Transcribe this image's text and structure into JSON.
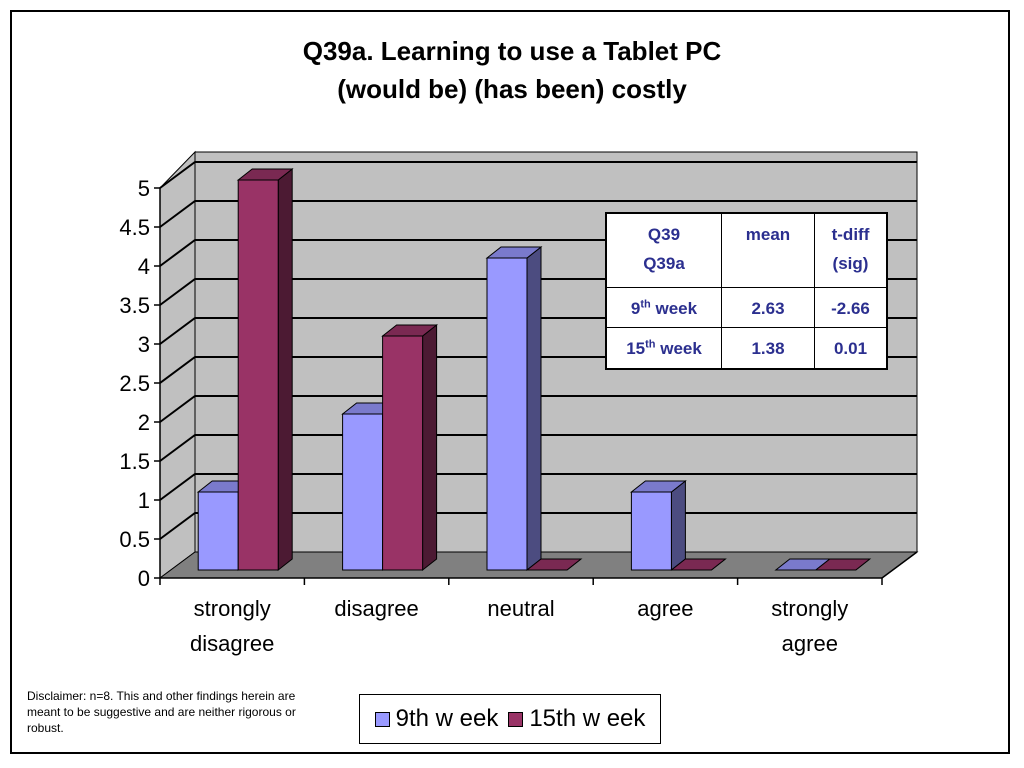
{
  "chart_data": {
    "type": "bar",
    "title_lines": [
      "Q39a. Learning to use a Tablet PC",
      "(would be) (has been) costly"
    ],
    "categories": [
      [
        "strongly",
        "disagree"
      ],
      [
        "disagree"
      ],
      [
        "neutral"
      ],
      [
        "agree"
      ],
      [
        "strongly",
        "agree"
      ]
    ],
    "series": [
      {
        "name": "9th w eek",
        "values": [
          1,
          2,
          4,
          1,
          0
        ]
      },
      {
        "name": "15th w eek",
        "values": [
          5,
          3,
          0,
          0,
          0
        ]
      }
    ],
    "y_ticks": [
      "0",
      "0.5",
      "1",
      "1.5",
      "2",
      "2.5",
      "3",
      "3.5",
      "4",
      "4.5",
      "5"
    ],
    "ylim": [
      0,
      5
    ],
    "grid": true,
    "legend_position": "bottom",
    "colors": {
      "series_front": [
        "#9999ff",
        "#993366"
      ],
      "series_side": [
        "#4c4c80",
        "#4c1a33"
      ],
      "series_top": [
        "#7a7acc",
        "#7a2952"
      ],
      "wall": "#c0c0c0",
      "floor": "#808080"
    }
  },
  "stats_table": {
    "headers": [
      [
        "Q39",
        "Q39a"
      ],
      [
        "mean"
      ],
      [
        "t-diff",
        "(sig)"
      ]
    ],
    "rows": [
      {
        "label": "9",
        "label_sup": "th",
        "label_rest": " week",
        "mean": "2.63",
        "tdiff": "-2.66"
      },
      {
        "label": "15",
        "label_sup": "th",
        "label_rest": " week",
        "mean": "1.38",
        "tdiff": "0.01"
      }
    ]
  },
  "disclaimer": "Disclaimer:  n=8.  This and other findings herein are meant to be suggestive and are neither rigorous or robust."
}
